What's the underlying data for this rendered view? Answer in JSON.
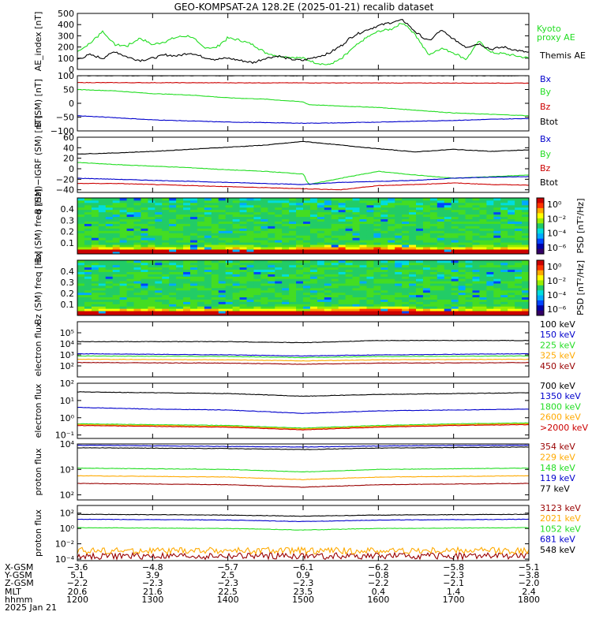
{
  "title": "GEO-KOMPSAT-2A 128.2E (2025-01-21) recalib dataset",
  "colors": {
    "black": "#000000",
    "blue": "#0000cc",
    "green": "#22dd22",
    "red": "#cc0000",
    "orange": "#ffaa00",
    "darkred": "#990000"
  },
  "chart_data": [
    {
      "id": "ae",
      "type": "line",
      "ylabel": "AE_index [nT]",
      "ylim": [
        0,
        500
      ],
      "yticks": [
        "500",
        "400",
        "300",
        "200",
        "100",
        "0"
      ],
      "yticks_values": [
        500,
        400,
        300,
        200,
        100,
        0
      ],
      "series": [
        {
          "name": "Kyoto proxy AE",
          "color": "#22dd22",
          "x": [
            1200,
            1210,
            1220,
            1230,
            1240,
            1250,
            1300,
            1310,
            1320,
            1330,
            1340,
            1350,
            1400,
            1410,
            1420,
            1430,
            1440,
            1450,
            1500,
            1510,
            1520,
            1530,
            1540,
            1550,
            1600,
            1610,
            1620,
            1630,
            1640,
            1650,
            1700,
            1710,
            1720,
            1730,
            1740,
            1750,
            1800
          ],
          "y": [
            160,
            230,
            340,
            220,
            210,
            280,
            220,
            250,
            290,
            300,
            200,
            190,
            280,
            260,
            220,
            150,
            120,
            110,
            100,
            60,
            40,
            90,
            190,
            280,
            340,
            360,
            420,
            300,
            130,
            190,
            150,
            90,
            250,
            150,
            140,
            120,
            100
          ]
        },
        {
          "name": "Themis AE",
          "color": "#000000",
          "x": [
            1200,
            1210,
            1220,
            1230,
            1240,
            1250,
            1300,
            1310,
            1320,
            1330,
            1340,
            1350,
            1400,
            1410,
            1420,
            1430,
            1440,
            1450,
            1500,
            1510,
            1520,
            1530,
            1540,
            1550,
            1600,
            1610,
            1620,
            1630,
            1640,
            1650,
            1700,
            1710,
            1720,
            1730,
            1740,
            1750,
            1800
          ],
          "y": [
            90,
            130,
            100,
            160,
            110,
            80,
            100,
            130,
            120,
            150,
            110,
            90,
            100,
            80,
            60,
            100,
            120,
            90,
            80,
            110,
            140,
            210,
            300,
            350,
            390,
            420,
            440,
            330,
            250,
            350,
            270,
            200,
            230,
            180,
            200,
            170,
            150
          ]
        }
      ],
      "legend": [
        "Kyoto",
        "proxy AE",
        "Themis AE"
      ]
    },
    {
      "id": "bsm",
      "type": "line",
      "ylabel": "B (SM) [nT]",
      "ylim": [
        -100,
        100
      ],
      "yticks": [
        "100",
        "50",
        "0",
        "−50",
        "−100"
      ],
      "yticks_values": [
        100,
        50,
        0,
        -50,
        -100
      ],
      "series": [
        {
          "name": "Btot",
          "color": "#000000",
          "x": [
            1200,
            1800
          ],
          "y": [
            100,
            100
          ]
        },
        {
          "name": "Bz",
          "color": "#cc0000",
          "x": [
            1200,
            1800
          ],
          "y": [
            75,
            73
          ]
        },
        {
          "name": "By",
          "color": "#22dd22",
          "x": [
            1200,
            1230,
            1300,
            1330,
            1400,
            1430,
            1500,
            1505,
            1530,
            1600,
            1630,
            1700,
            1730,
            1800
          ],
          "y": [
            50,
            45,
            35,
            30,
            20,
            15,
            5,
            -5,
            -10,
            -15,
            -25,
            -35,
            -40,
            -45
          ]
        },
        {
          "name": "Bx",
          "color": "#0000cc",
          "x": [
            1200,
            1230,
            1300,
            1330,
            1400,
            1430,
            1500,
            1530,
            1600,
            1630,
            1700,
            1730,
            1800
          ],
          "y": [
            -45,
            -52,
            -60,
            -64,
            -68,
            -70,
            -72,
            -71,
            -68,
            -65,
            -62,
            -58,
            -55
          ]
        }
      ],
      "legend": [
        "Bx",
        "By",
        "Bz",
        "Btot"
      ]
    },
    {
      "id": "bigrf",
      "type": "line",
      "ylabel": "B (SM)−IGRF (SM) [nT]",
      "ylim": [
        -45,
        60
      ],
      "yticks": [
        "60",
        "40",
        "20",
        "0",
        "−20",
        "−40"
      ],
      "yticks_values": [
        60,
        40,
        20,
        0,
        -20,
        -40
      ],
      "series": [
        {
          "name": "Btot",
          "color": "#000000",
          "x": [
            1200,
            1230,
            1300,
            1330,
            1400,
            1430,
            1500,
            1530,
            1600,
            1630,
            1700,
            1730,
            1800
          ],
          "y": [
            28,
            30,
            33,
            37,
            41,
            45,
            52,
            45,
            38,
            32,
            37,
            33,
            36
          ]
        },
        {
          "name": "By",
          "color": "#22dd22",
          "x": [
            1200,
            1230,
            1300,
            1330,
            1400,
            1430,
            1500,
            1505,
            1530,
            1600,
            1630,
            1700,
            1730,
            1800
          ],
          "y": [
            12,
            8,
            5,
            2,
            -2,
            -5,
            -10,
            -30,
            -18,
            -5,
            -12,
            -18,
            -15,
            -12
          ]
        },
        {
          "name": "Bx",
          "color": "#0000cc",
          "x": [
            1200,
            1230,
            1300,
            1330,
            1400,
            1430,
            1500,
            1530,
            1600,
            1630,
            1700,
            1730,
            1800
          ],
          "y": [
            -18,
            -20,
            -22,
            -24,
            -26,
            -28,
            -30,
            -26,
            -24,
            -22,
            -18,
            -16,
            -15
          ]
        },
        {
          "name": "Bz",
          "color": "#cc0000",
          "x": [
            1200,
            1230,
            1300,
            1330,
            1400,
            1430,
            1500,
            1530,
            1600,
            1630,
            1700,
            1730,
            1800
          ],
          "y": [
            -28,
            -28,
            -30,
            -32,
            -34,
            -36,
            -38,
            -40,
            -32,
            -30,
            -27,
            -30,
            -31
          ]
        }
      ],
      "legend": [
        "Bx",
        "By",
        "Bz",
        "Btot"
      ]
    },
    {
      "id": "bxspec",
      "type": "heatmap",
      "ylabel": "Bx (SM) freq [Hz]",
      "ylim": [
        0,
        0.5
      ],
      "yticks": [
        "0.4",
        "0.3",
        "0.2",
        "0.1"
      ],
      "yticks_values": [
        0.4,
        0.3,
        0.2,
        0.1
      ],
      "colorbar_label": "PSD [nT²/Hz]",
      "colorbar_ticks": [
        "10⁰",
        "10⁻²",
        "10⁻⁴",
        "10⁻⁶"
      ]
    },
    {
      "id": "bzspec",
      "type": "heatmap",
      "ylabel": "Bz (SM) freq [Hz]",
      "ylim": [
        0,
        0.5
      ],
      "yticks": [
        "0.4",
        "0.3",
        "0.2",
        "0.1"
      ],
      "yticks_values": [
        0.4,
        0.3,
        0.2,
        0.1
      ],
      "colorbar_label": "PSD [nT²/Hz]",
      "colorbar_ticks": [
        "10⁰",
        "10⁻²",
        "10⁻⁴",
        "10⁻⁶"
      ]
    },
    {
      "id": "eflux1",
      "type": "line",
      "log": true,
      "ylabel": "electron flux",
      "ylim": [
        1,
        6
      ],
      "yticks": [
        "10⁵",
        "10⁴",
        "10³",
        "10²"
      ],
      "yticks_values": [
        5,
        4,
        3,
        2
      ],
      "series": [
        {
          "name": "100 keV",
          "color": "#000000",
          "x": [
            1200,
            1400,
            1500,
            1600,
            1800
          ],
          "y": [
            4.2,
            4.2,
            4.1,
            4.3,
            4.3
          ]
        },
        {
          "name": "150 keV",
          "color": "#0000cc",
          "x": [
            1200,
            1400,
            1500,
            1600,
            1800
          ],
          "y": [
            3.1,
            3.0,
            2.9,
            3.0,
            3.1
          ]
        },
        {
          "name": "225 keV",
          "color": "#22dd22",
          "x": [
            1200,
            1400,
            1500,
            1600,
            1800
          ],
          "y": [
            2.9,
            2.85,
            2.75,
            2.85,
            2.9
          ]
        },
        {
          "name": "325 keV",
          "color": "#ffaa00",
          "x": [
            1200,
            1400,
            1500,
            1600,
            1800
          ],
          "y": [
            2.6,
            2.55,
            2.45,
            2.55,
            2.6
          ]
        },
        {
          "name": "450 keV",
          "color": "#990000",
          "x": [
            1200,
            1400,
            1500,
            1600,
            1800
          ],
          "y": [
            2.3,
            2.25,
            2.15,
            2.25,
            2.3
          ]
        }
      ]
    },
    {
      "id": "eflux2",
      "type": "line",
      "log": true,
      "ylabel": "electron flux",
      "ylim": [
        -1.2,
        2
      ],
      "yticks": [
        "10²",
        "10¹",
        "10⁰",
        "10⁻¹"
      ],
      "yticks_values": [
        2,
        1,
        0,
        -1
      ],
      "series": [
        {
          "name": "700 keV",
          "color": "#000000",
          "x": [
            1200,
            1300,
            1400,
            1500,
            1600,
            1700,
            1800
          ],
          "y": [
            1.5,
            1.45,
            1.4,
            1.25,
            1.35,
            1.4,
            1.45
          ]
        },
        {
          "name": "1350 keV",
          "color": "#0000cc",
          "x": [
            1200,
            1300,
            1400,
            1500,
            1600,
            1700,
            1800
          ],
          "y": [
            0.6,
            0.5,
            0.45,
            0.25,
            0.4,
            0.45,
            0.5
          ]
        },
        {
          "name": "1800 keV",
          "color": "#22dd22",
          "x": [
            1200,
            1300,
            1400,
            1500,
            1600,
            1700,
            1800
          ],
          "y": [
            -0.35,
            -0.4,
            -0.45,
            -0.6,
            -0.45,
            -0.35,
            -0.3
          ]
        },
        {
          "name": "2600 keV",
          "color": "#ffaa00",
          "x": [
            1200,
            1300,
            1400,
            1500,
            1600,
            1700,
            1800
          ],
          "y": [
            -0.4,
            -0.45,
            -0.5,
            -0.65,
            -0.5,
            -0.4,
            -0.35
          ]
        },
        {
          "name": ">2000 keV",
          "color": "#cc0000",
          "x": [
            1200,
            1300,
            1400,
            1500,
            1600,
            1700,
            1800
          ],
          "y": [
            -0.45,
            -0.5,
            -0.55,
            -0.7,
            -0.55,
            -0.45,
            -0.4
          ]
        }
      ]
    },
    {
      "id": "pflux1",
      "type": "line",
      "log": true,
      "ylabel": "proton flux",
      "ylim": [
        1.8,
        4
      ],
      "yticks": [
        "10⁴",
        "10³",
        "10²"
      ],
      "yticks_values": [
        4,
        3,
        2
      ],
      "series": [
        {
          "name": "354 keV",
          "color": "#990000",
          "x": [
            1200,
            1400,
            1500,
            1600,
            1800
          ],
          "y": [
            2.45,
            2.4,
            2.3,
            2.4,
            2.45
          ]
        },
        {
          "name": "229 keV",
          "color": "#ffaa00",
          "x": [
            1200,
            1400,
            1500,
            1600,
            1800
          ],
          "y": [
            2.75,
            2.7,
            2.6,
            2.7,
            2.75
          ]
        },
        {
          "name": "148 keV",
          "color": "#22dd22",
          "x": [
            1200,
            1400,
            1500,
            1600,
            1800
          ],
          "y": [
            3.05,
            3.0,
            2.9,
            3.0,
            3.05
          ]
        },
        {
          "name": "119 keV",
          "color": "#0000cc",
          "x": [
            1200,
            1400,
            1500,
            1600,
            1800
          ],
          "y": [
            3.95,
            3.9,
            3.88,
            3.92,
            3.95
          ]
        },
        {
          "name": "77 keV",
          "color": "#000000",
          "x": [
            1200,
            1400,
            1500,
            1600,
            1800
          ],
          "y": [
            3.85,
            3.82,
            3.78,
            3.84,
            3.88
          ]
        }
      ]
    },
    {
      "id": "pflux2",
      "type": "line",
      "log": true,
      "ylabel": "proton flux",
      "ylim": [
        -4.2,
        3
      ],
      "yticks": [
        "10²",
        "10⁰",
        "10⁻²",
        "10⁻⁴"
      ],
      "yticks_values": [
        2,
        0,
        -2,
        -4
      ],
      "series": [
        {
          "name": "3123 keV",
          "color": "#990000",
          "x": [
            1200,
            1800
          ],
          "y": [
            -3.6,
            -3.6
          ]
        },
        {
          "name": "2021 keV",
          "color": "#ffaa00",
          "x": [
            1200,
            1800
          ],
          "y": [
            -2.9,
            -2.9
          ]
        },
        {
          "name": "1052 keV",
          "color": "#22dd22",
          "x": [
            1200,
            1300,
            1400,
            1500,
            1600,
            1700,
            1800
          ],
          "y": [
            0.1,
            0.05,
            0.0,
            -0.2,
            0.0,
            0.05,
            0.1
          ]
        },
        {
          "name": "681 keV",
          "color": "#0000cc",
          "x": [
            1200,
            1300,
            1400,
            1500,
            1600,
            1700,
            1800
          ],
          "y": [
            1.2,
            1.15,
            1.1,
            0.9,
            1.1,
            1.15,
            1.2
          ]
        },
        {
          "name": "548 keV",
          "color": "#000000",
          "x": [
            1200,
            1300,
            1400,
            1500,
            1600,
            1700,
            1800
          ],
          "y": [
            1.85,
            1.8,
            1.75,
            1.6,
            1.75,
            1.8,
            1.85
          ]
        }
      ]
    }
  ],
  "ephemeris": {
    "row_labels": [
      "X-GSM",
      "Y-GSM",
      "Z-GSM",
      "MLT",
      "hhmm",
      "2025 Jan 21"
    ],
    "columns": [
      {
        "x": "−3.6",
        "y": "5.1",
        "z": "−2.2",
        "mlt": "20.6",
        "hhmm": "1200"
      },
      {
        "x": "−4.8",
        "y": "3.9",
        "z": "−2.3",
        "mlt": "21.6",
        "hhmm": "1300"
      },
      {
        "x": "−5.7",
        "y": "2.5",
        "z": "−2.3",
        "mlt": "22.5",
        "hhmm": "1400"
      },
      {
        "x": "−6.1",
        "y": "0.9",
        "z": "−2.3",
        "mlt": "23.5",
        "hhmm": "1500"
      },
      {
        "x": "−6.2",
        "y": "−0.8",
        "z": "−2.2",
        "mlt": "0.4",
        "hhmm": "1600"
      },
      {
        "x": "−5.8",
        "y": "−2.3",
        "z": "−2.1",
        "mlt": "1.4",
        "hhmm": "1700"
      },
      {
        "x": "−5.1",
        "y": "−3.8",
        "z": "−2.0",
        "mlt": "2.4",
        "hhmm": "1800"
      }
    ]
  }
}
